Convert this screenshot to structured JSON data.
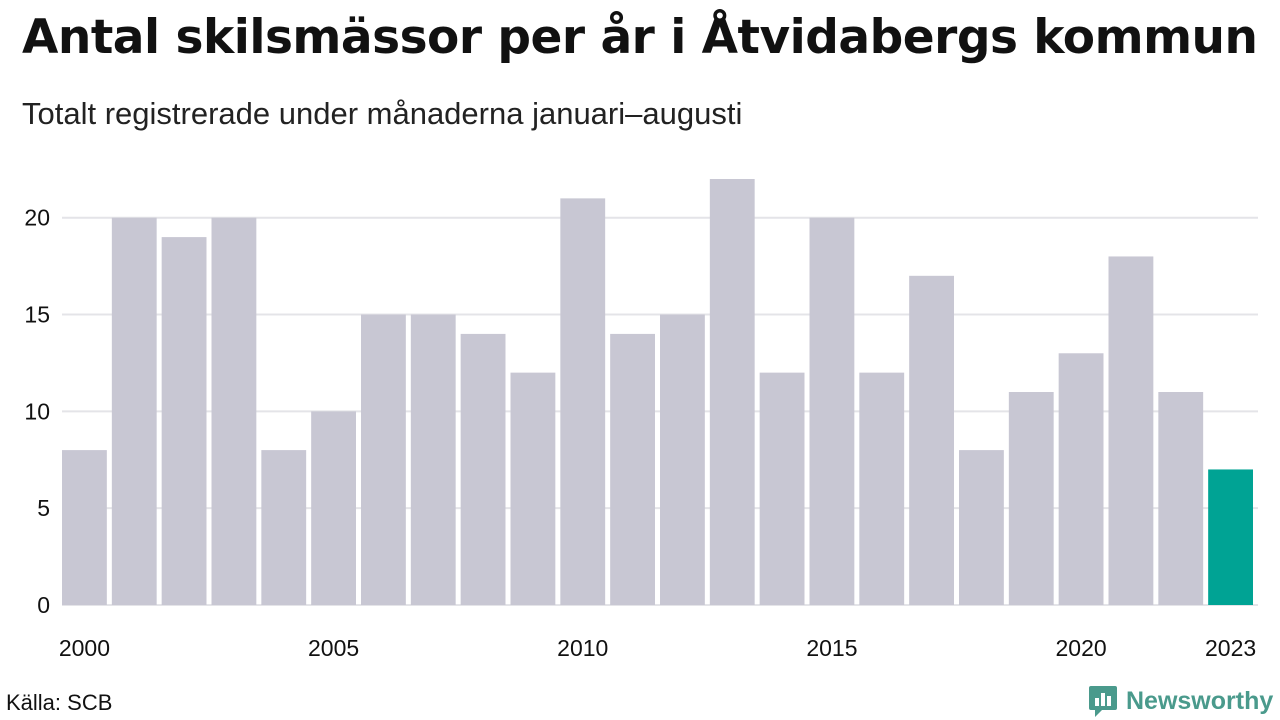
{
  "header": {
    "title": "Antal skilsmässor per år i Åtvidabergs kommun",
    "subtitle": "Totalt registrerade under månaderna januari–augusti"
  },
  "footer": {
    "source": "Källa: SCB",
    "brand": "Newsworthy",
    "brand_icon": "bar-chart-speech-icon"
  },
  "colors": {
    "bar": "#c8c7d3",
    "highlight": "#00a394",
    "grid": "#e4e4e8",
    "brand": "#4a9a8c"
  },
  "chart_data": {
    "type": "bar",
    "categories": [
      "2000",
      "2001",
      "2002",
      "2003",
      "2004",
      "2005",
      "2006",
      "2007",
      "2008",
      "2009",
      "2010",
      "2011",
      "2012",
      "2013",
      "2014",
      "2015",
      "2016",
      "2017",
      "2018",
      "2019",
      "2020",
      "2021",
      "2022",
      "2023"
    ],
    "values": [
      8,
      20,
      19,
      20,
      8,
      10,
      15,
      15,
      14,
      12,
      21,
      14,
      15,
      22,
      12,
      20,
      12,
      17,
      8,
      11,
      13,
      18,
      11,
      7
    ],
    "highlight_category": "2023",
    "x_tick_labels": [
      "2000",
      "2005",
      "2010",
      "2015",
      "2020",
      "2023"
    ],
    "y_ticks": [
      0,
      5,
      10,
      15,
      20
    ],
    "ylim": [
      0,
      22
    ],
    "grid": true,
    "xlabel": "",
    "ylabel": ""
  }
}
